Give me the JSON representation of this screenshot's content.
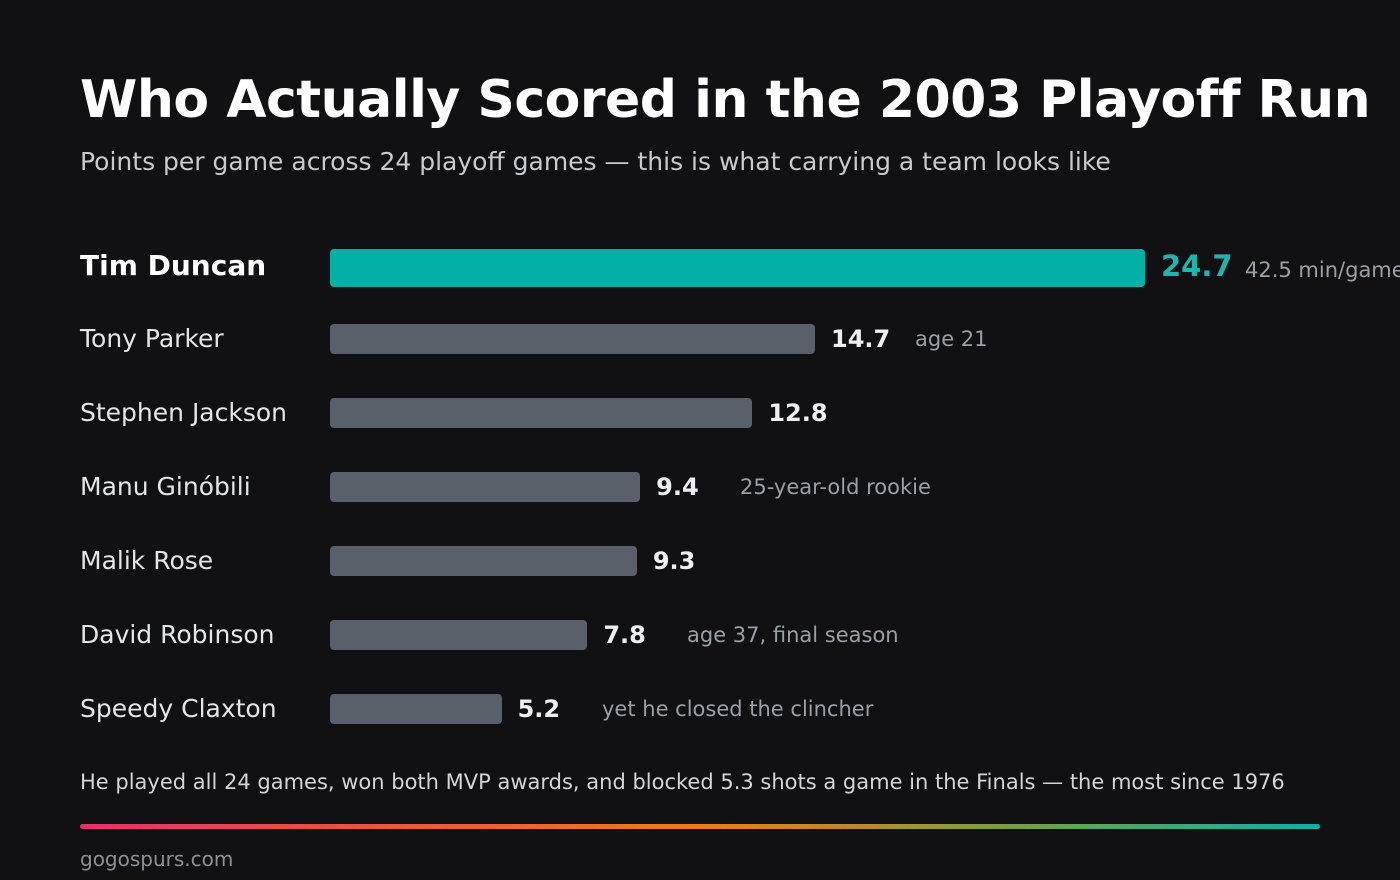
{
  "header": {
    "title": "Who Actually Scored in the 2003 Playoff Run",
    "subtitle": "Points per game across 24 playoff games — this is what carrying a team looks like"
  },
  "chart_data": {
    "type": "bar",
    "orientation": "horizontal",
    "categories": [
      "Tim Duncan",
      "Tony Parker",
      "Stephen Jackson",
      "Manu Ginóbili",
      "Malik Rose",
      "David Robinson",
      "Speedy Claxton"
    ],
    "values": [
      24.7,
      14.7,
      12.8,
      9.4,
      9.3,
      7.8,
      5.2
    ],
    "value_labels": [
      "24.7",
      "14.7",
      "12.8",
      "9.4",
      "9.3",
      "7.8",
      "5.2"
    ],
    "annotations": [
      "42.5 min/game",
      "age 21",
      "",
      "25-year-old rookie",
      "",
      "age 37, final season",
      "yet he closed the clincher"
    ],
    "highlight_index": 0,
    "grid": false,
    "legend": "none"
  },
  "footer": {
    "note": "He played all 24 games, won both MVP awards, and blocked 5.3 shots a game in the Finals — the most since 1976",
    "source": "gogospurs.com"
  },
  "colors": {
    "background": "#111113",
    "highlight_bar": "#02b0a8",
    "default_bar": "#596069",
    "gradient_start": "#e8306e",
    "gradient_mid": "#f07d12",
    "gradient_end": "#0bb0a6"
  }
}
